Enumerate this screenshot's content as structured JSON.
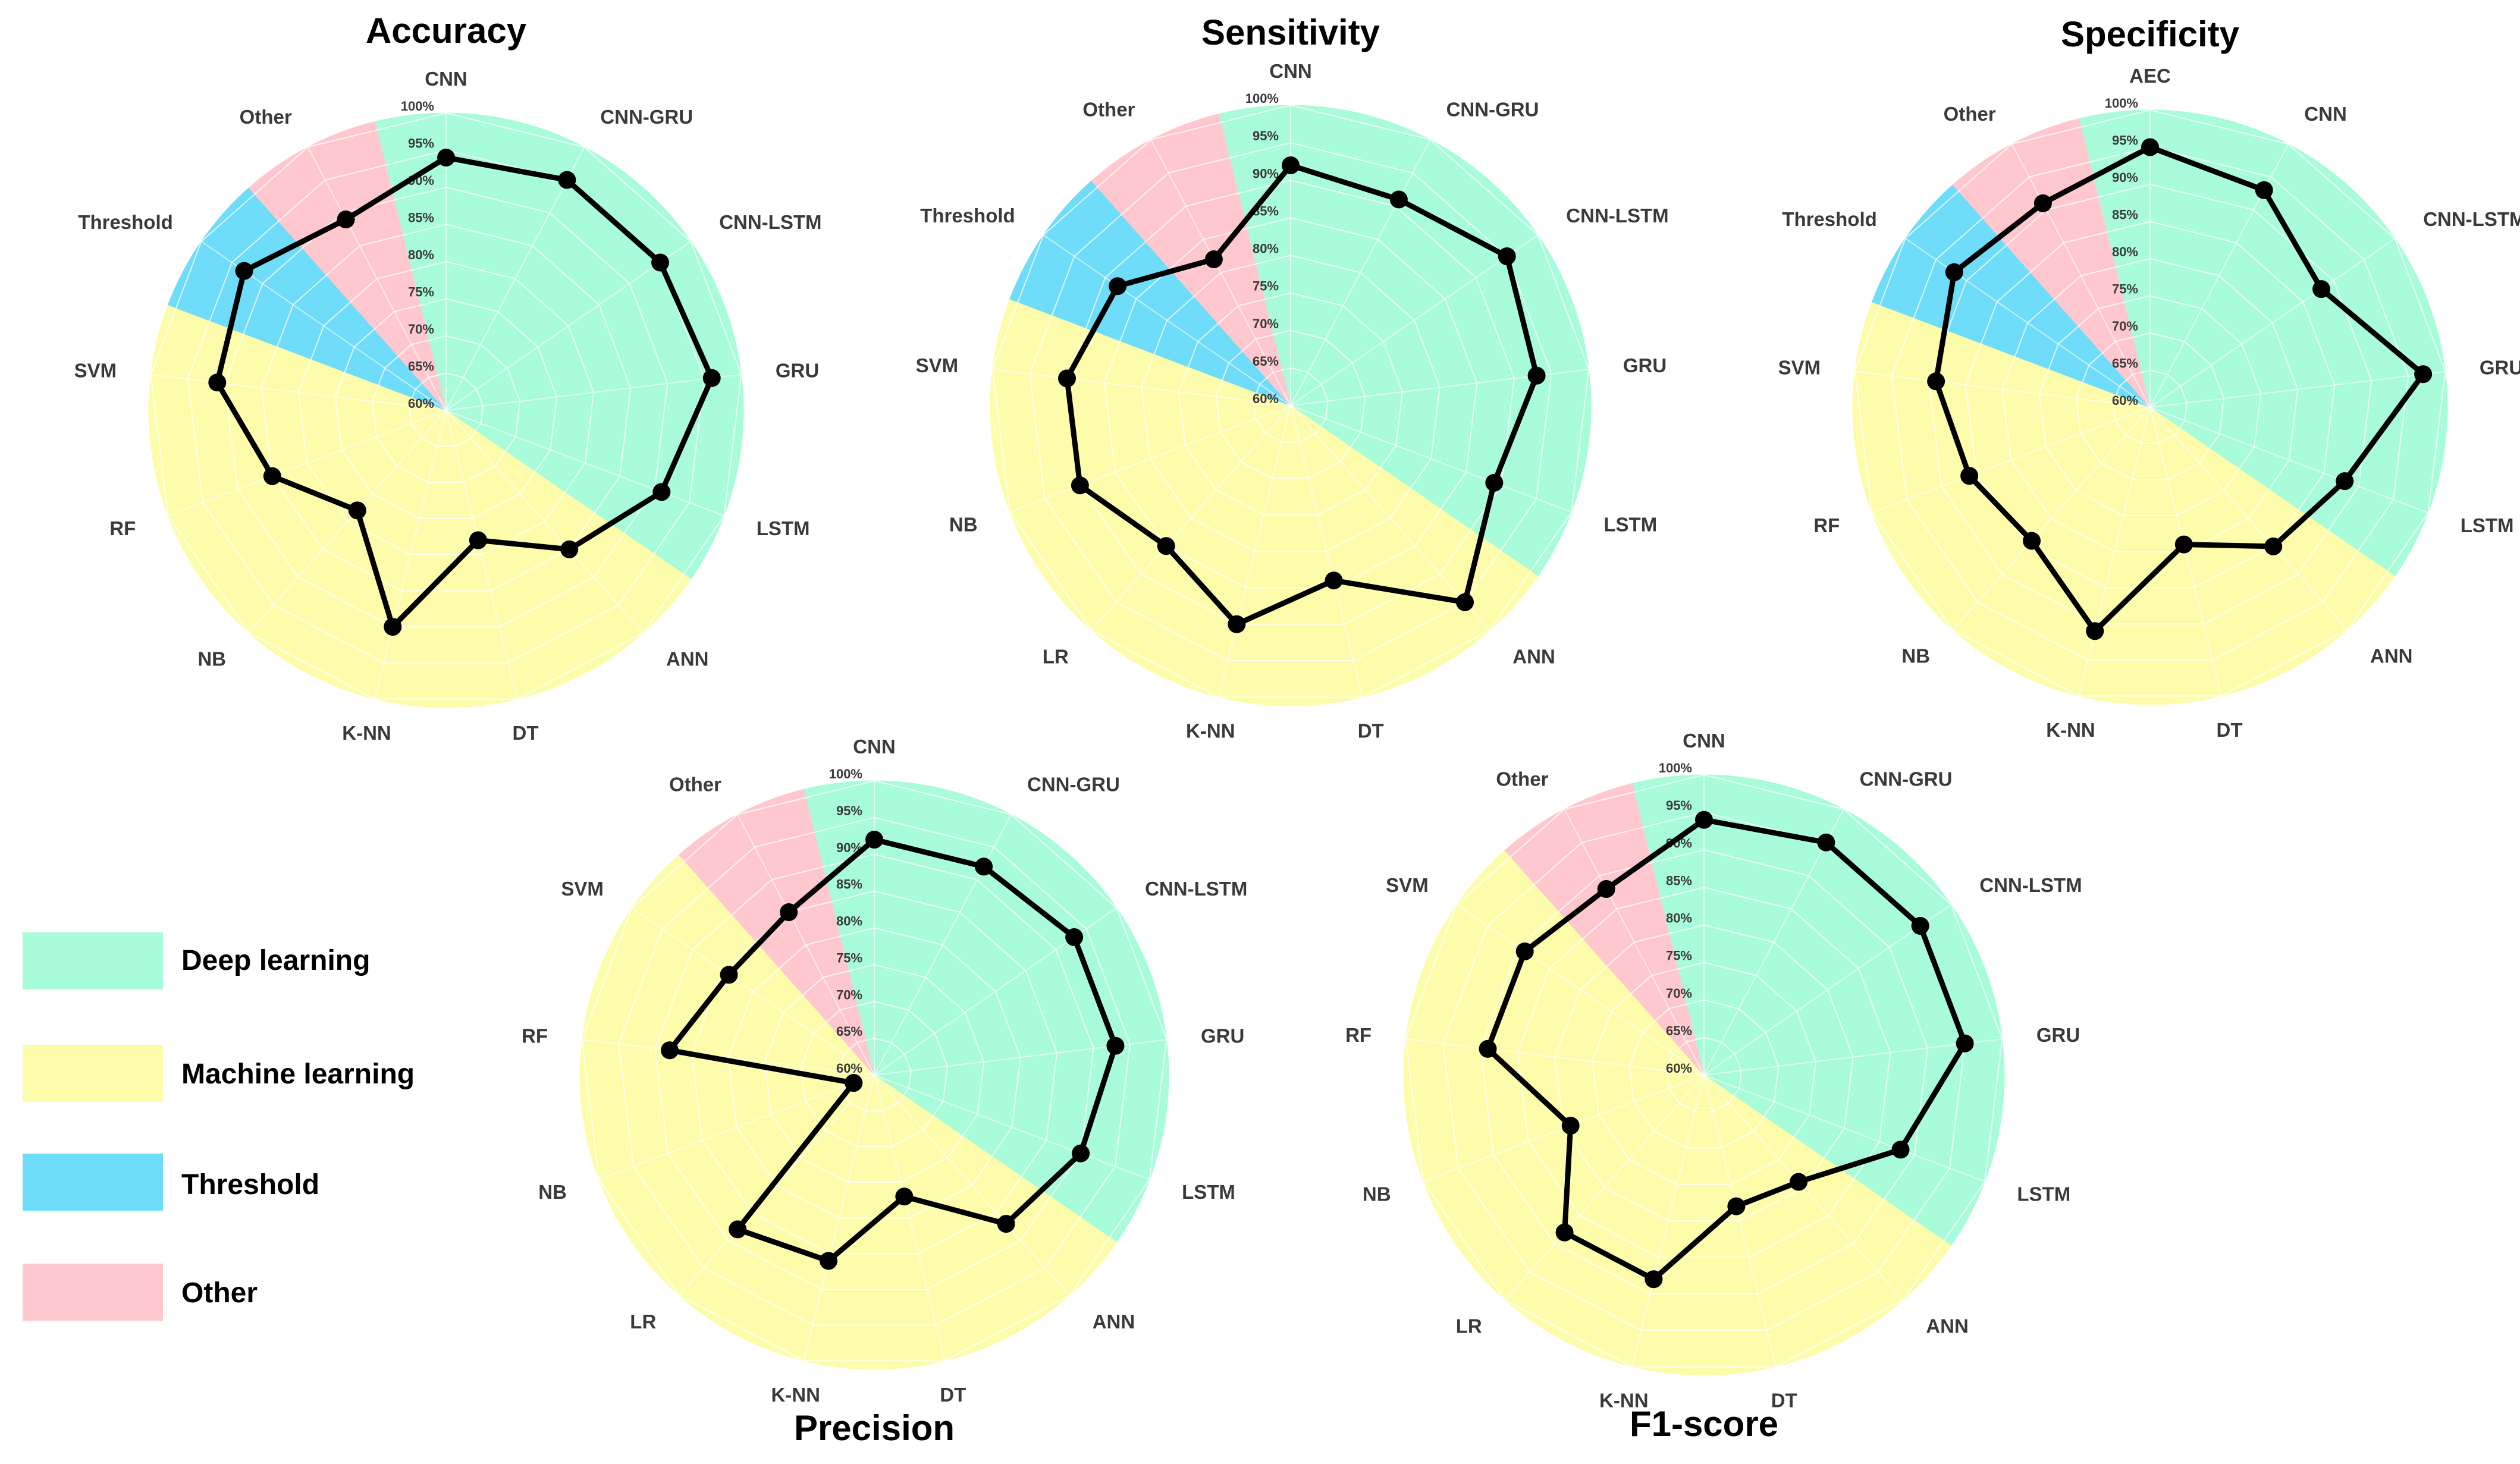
{
  "chart_data": [
    {
      "type": "radar",
      "title": "Accuracy",
      "categories": [
        "CNN",
        "CNN-GRU",
        "CNN-LSTM",
        "GRU",
        "LSTM",
        "ANN",
        "DT",
        "K-NN",
        "NB",
        "RF",
        "SVM",
        "Threshold",
        "Other"
      ],
      "groups": [
        "Deep learning",
        "Deep learning",
        "Deep learning",
        "Deep learning",
        "Deep learning",
        "Machine learning",
        "Machine learning",
        "Machine learning",
        "Machine learning",
        "Machine learning",
        "Machine learning",
        "Threshold",
        "Other"
      ],
      "values": [
        94,
        95,
        95,
        96,
        91,
        85,
        78,
        90,
        78,
        85,
        91,
        93,
        89
      ],
      "ticks": [
        "60%",
        "65%",
        "70%",
        "75%",
        "80%",
        "85%",
        "90%",
        "95%",
        "100%"
      ],
      "rlim": [
        60,
        100
      ]
    },
    {
      "type": "radar",
      "title": "Sensitivity",
      "categories": [
        "CNN",
        "CNN-GRU",
        "CNN-LSTM",
        "GRU",
        "LSTM",
        "ANN",
        "DT",
        "K-NN",
        "LR",
        "NB",
        "SVM",
        "Threshold",
        "Other"
      ],
      "groups": [
        "Deep learning",
        "Deep learning",
        "Deep learning",
        "Deep learning",
        "Deep learning",
        "Machine learning",
        "Machine learning",
        "Machine learning",
        "Machine learning",
        "Machine learning",
        "Machine learning",
        "Threshold",
        "Other"
      ],
      "values": [
        92,
        91,
        95,
        93,
        89,
        95,
        84,
        90,
        85,
        90,
        90,
        88,
        82
      ],
      "ticks": [
        "60%",
        "65%",
        "70%",
        "75%",
        "80%",
        "85%",
        "90%",
        "95%",
        "100%"
      ],
      "rlim": [
        60,
        100
      ]
    },
    {
      "type": "radar",
      "title": "Specificity",
      "categories": [
        "AEC",
        "CNN",
        "CNN-LSTM",
        "GRU",
        "LSTM",
        "ANN",
        "DT",
        "K-NN",
        "NB",
        "RF",
        "SVM",
        "Threshold",
        "Other"
      ],
      "groups": [
        "Deep learning",
        "Deep learning",
        "Deep learning",
        "Deep learning",
        "Deep learning",
        "Machine learning",
        "Machine learning",
        "Machine learning",
        "Machine learning",
        "Machine learning",
        "Machine learning",
        "Threshold",
        "Other"
      ],
      "values": [
        95,
        93,
        88,
        97,
        88,
        85,
        79,
        91,
        84,
        86,
        89,
        92,
        91
      ],
      "ticks": [
        "60%",
        "65%",
        "70%",
        "75%",
        "80%",
        "85%",
        "90%",
        "95%",
        "100%"
      ],
      "rlim": [
        60,
        100
      ]
    },
    {
      "type": "radar",
      "title": "Precision",
      "categories": [
        "CNN",
        "CNN-GRU",
        "CNN-LSTM",
        "GRU",
        "LSTM",
        "ANN",
        "DT",
        "K-NN",
        "LR",
        "NB",
        "RF",
        "SVM",
        "Other"
      ],
      "groups": [
        "Deep learning",
        "Deep learning",
        "Deep learning",
        "Deep learning",
        "Deep learning",
        "Machine learning",
        "Machine learning",
        "Machine learning",
        "Machine learning",
        "Machine learning",
        "Machine learning",
        "Machine learning",
        "Other"
      ],
      "values": [
        92,
        92,
        93,
        93,
        90,
        87,
        77,
        86,
        88,
        63,
        88,
        84,
        85
      ],
      "ticks": [
        "60%",
        "65%",
        "70%",
        "75%",
        "80%",
        "85%",
        "90%",
        "95%",
        "100%"
      ],
      "rlim": [
        60,
        100
      ]
    },
    {
      "type": "radar",
      "title": "F1-score",
      "categories": [
        "CNN",
        "CNN-GRU",
        "CNN-LSTM",
        "GRU",
        "LSTM",
        "ANN",
        "DT",
        "K-NN",
        "LR",
        "NB",
        "RF",
        "SVM",
        "Other"
      ],
      "groups": [
        "Deep learning",
        "Deep learning",
        "Deep learning",
        "Deep learning",
        "Deep learning",
        "Machine learning",
        "Machine learning",
        "Machine learning",
        "Machine learning",
        "Machine learning",
        "Machine learning",
        "Machine learning",
        "Other"
      ],
      "values": [
        94,
        95,
        95,
        95,
        88,
        79,
        78,
        88,
        88,
        79,
        89,
        89,
        88
      ],
      "ticks": [
        "60%",
        "65%",
        "70%",
        "75%",
        "80%",
        "85%",
        "90%",
        "95%",
        "100%"
      ],
      "rlim": [
        60,
        100
      ]
    }
  ],
  "legend": [
    {
      "label": "Deep learning",
      "color": "#a8fcd9"
    },
    {
      "label": "Machine learning",
      "color": "#fdfcaa"
    },
    {
      "label": "Threshold",
      "color": "#6fdcf9"
    },
    {
      "label": "Other",
      "color": "#ffc8cf"
    }
  ],
  "colors": {
    "Deep learning": "#a8fcd9",
    "Machine learning": "#fdfcaa",
    "Threshold": "#6fdcf9",
    "Other": "#ffc8cf",
    "series": "#000000"
  }
}
